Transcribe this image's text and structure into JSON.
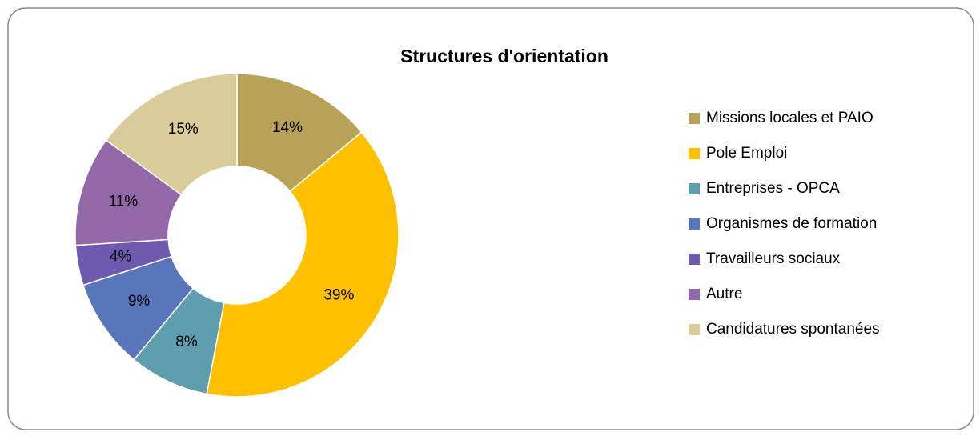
{
  "chart_data": {
    "type": "donut",
    "title": "Structures d'orientation",
    "categories": [
      "Missions locales et PAIO",
      "Pole Emploi",
      "Entreprises - OPCA",
      "Organismes de formation",
      "Travailleurs sociaux",
      "Autre",
      "Candidatures spontanées"
    ],
    "values": [
      14,
      39,
      8,
      9,
      4,
      11,
      15
    ],
    "value_labels": [
      "14%",
      "39%",
      "8%",
      "9%",
      "4%",
      "11%",
      "15%"
    ],
    "colors": [
      "#B8A257",
      "#FFC000",
      "#5F9EAE",
      "#5A76BA",
      "#6E5BB0",
      "#9368A8",
      "#D9CC99"
    ],
    "legend": "right"
  }
}
